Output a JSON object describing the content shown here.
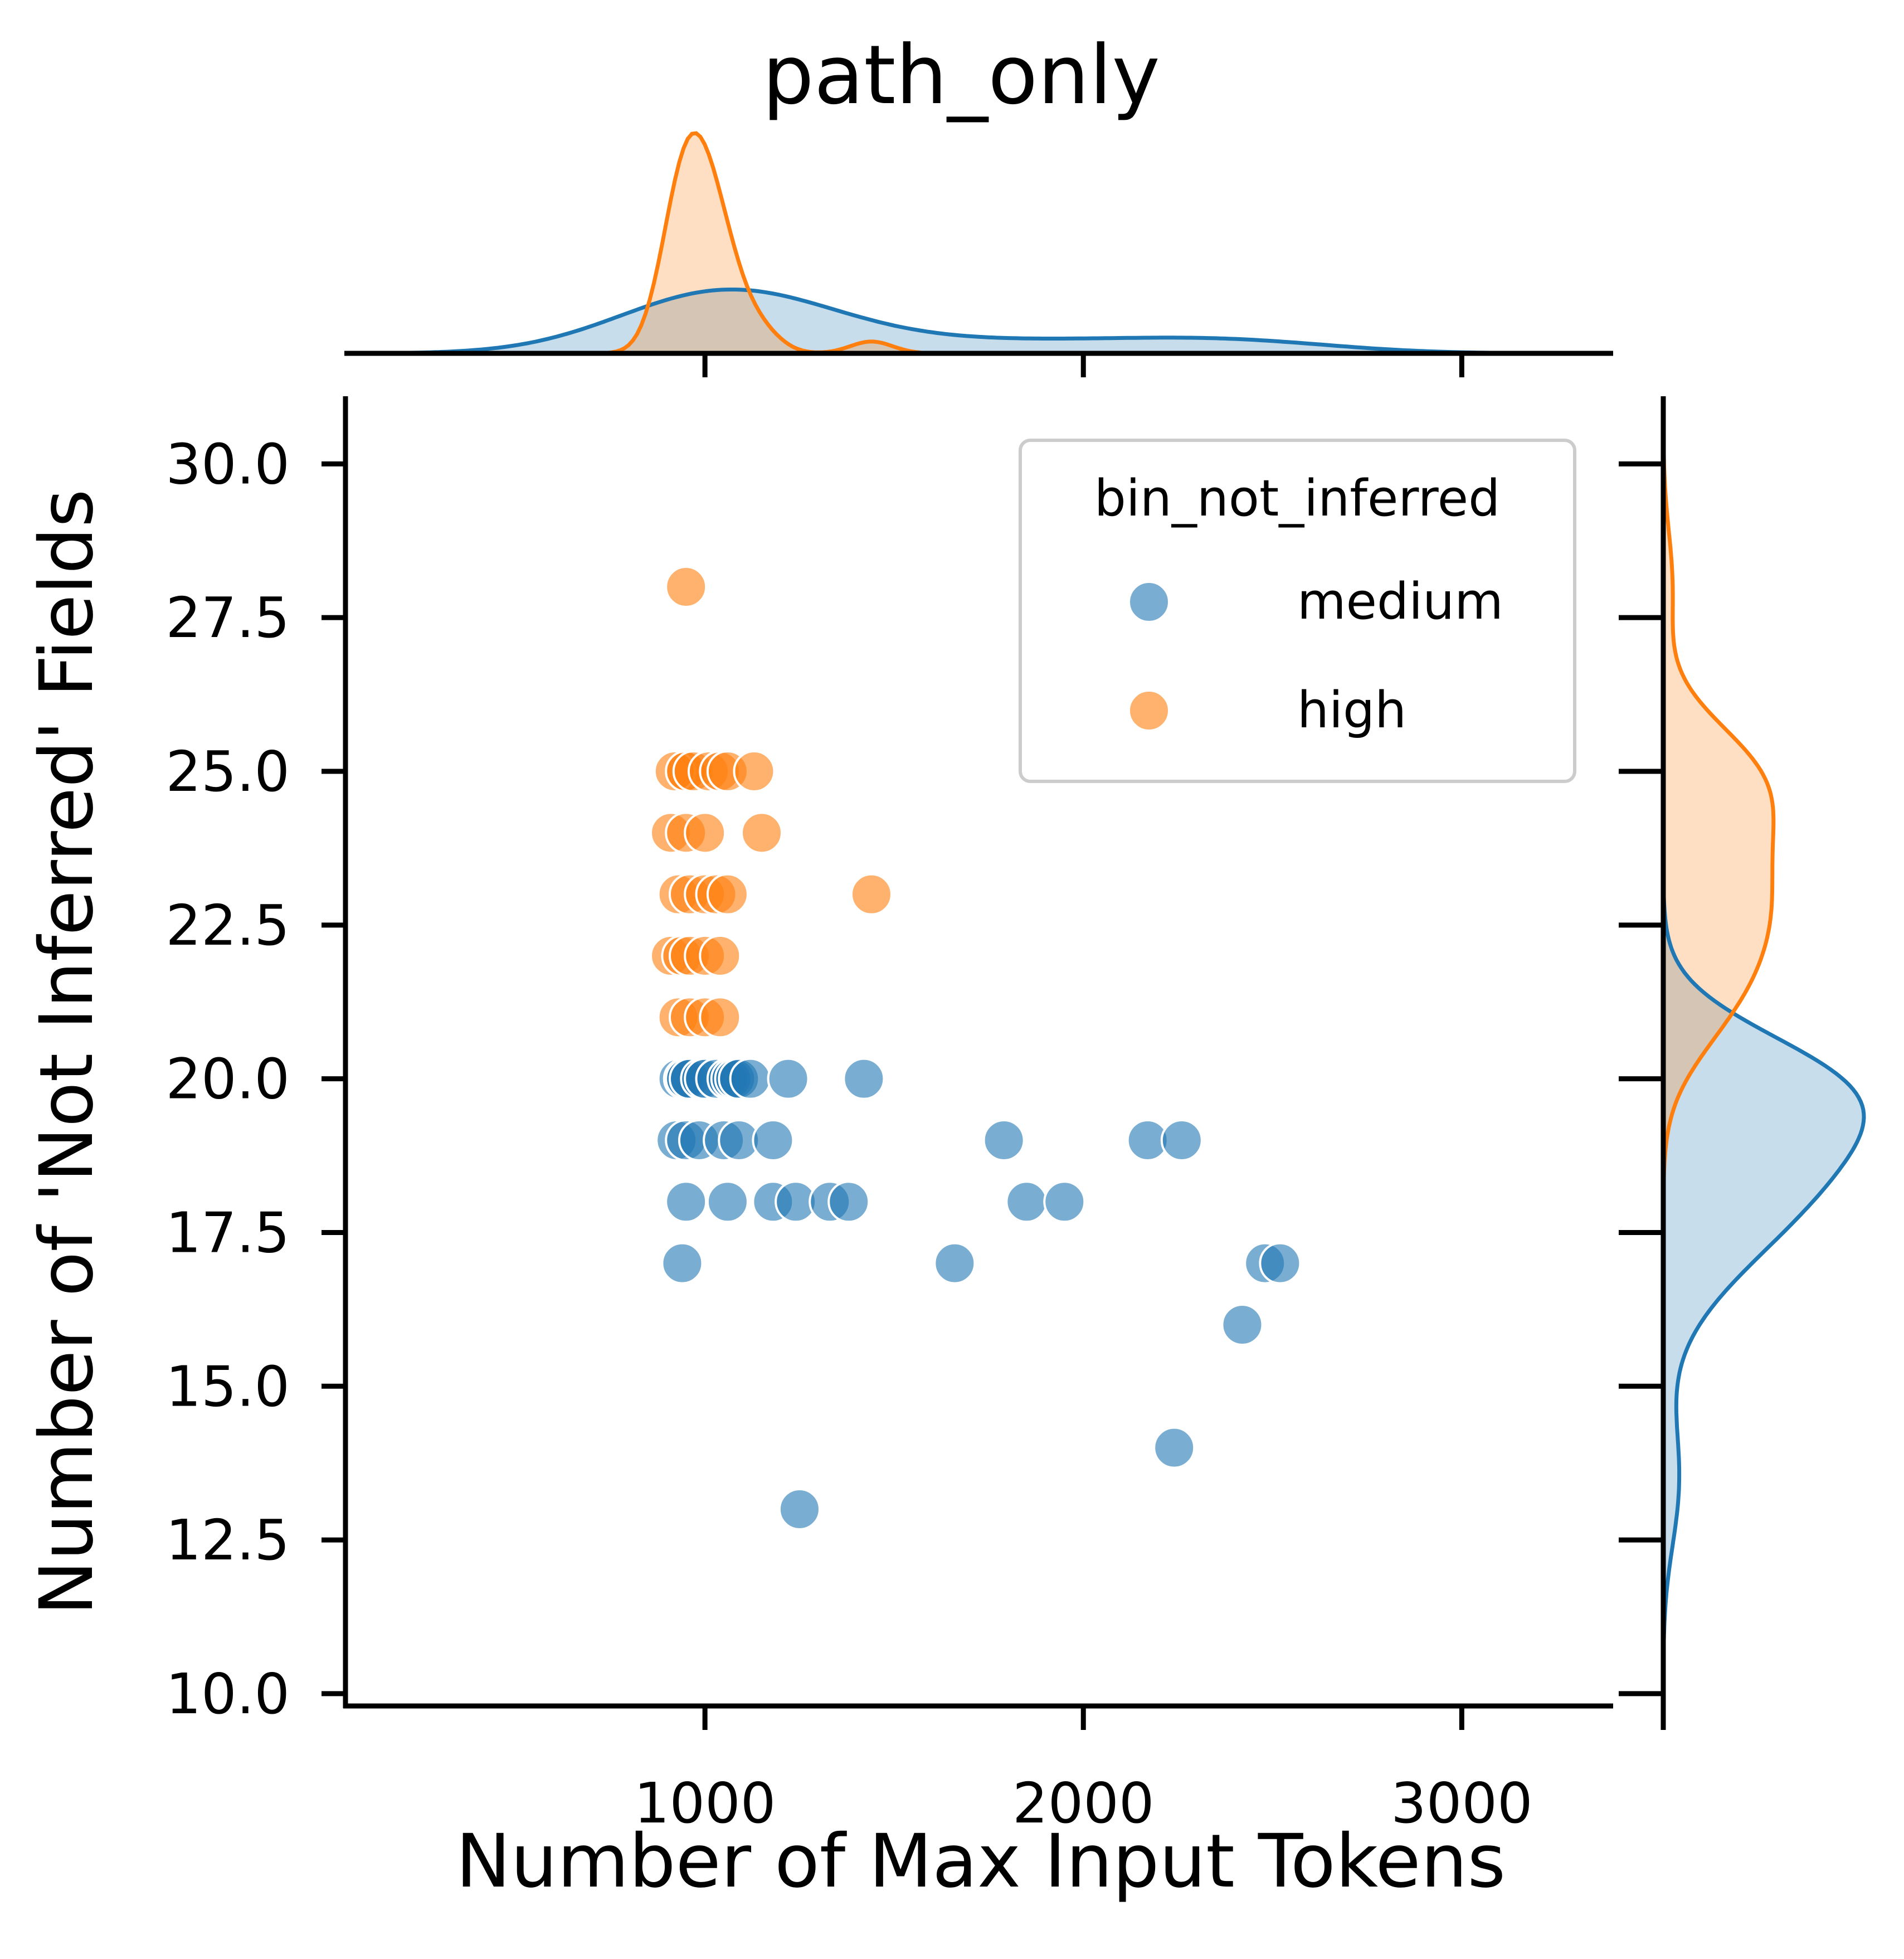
{
  "chart_data": {
    "type": "scatter",
    "title": "path_only",
    "xlabel": "Number of Max Input Tokens",
    "ylabel": "Number of 'Not Inferred' Fields",
    "xlim": [
      50,
      3400
    ],
    "ylim": [
      9.8,
      31.1
    ],
    "xticks": [
      "1000",
      "2000",
      "3000"
    ],
    "xtick_values": [
      1000,
      2000,
      3000
    ],
    "yticks": [
      "10.0",
      "12.5",
      "15.0",
      "17.5",
      "20.0",
      "22.5",
      "25.0",
      "27.5",
      "30.0"
    ],
    "ytick_values": [
      10,
      12.5,
      15,
      17.5,
      20,
      22.5,
      25,
      27.5,
      30
    ],
    "grid": false,
    "legend": {
      "title": "bin_not_inferred",
      "placement": "top-right",
      "entries": [
        "medium",
        "high"
      ]
    },
    "marginals": {
      "top": "kde of x per series",
      "right": "kde of y per series"
    },
    "series": [
      {
        "name": "medium",
        "color": "#1f77b4",
        "x": [
          930,
          945,
          950,
          960,
          990,
          1000,
          1030,
          1060,
          1070,
          1080,
          1090,
          1120,
          1220,
          1420,
          925,
          950,
          985,
          1050,
          1090,
          1180,
          1790,
          2170,
          2260,
          950,
          1060,
          1180,
          1240,
          1330,
          1380,
          1850,
          1950,
          940,
          1660,
          2480,
          2520,
          2420,
          2240,
          1250
        ],
        "y": [
          20,
          20,
          20,
          20,
          20,
          20,
          20,
          20,
          20,
          20,
          20,
          20,
          20,
          20,
          19,
          19,
          19,
          19,
          19,
          19,
          19,
          19,
          19,
          18,
          18,
          18,
          18,
          18,
          18,
          18,
          18,
          17,
          17,
          17,
          17,
          16,
          14,
          13
        ]
      },
      {
        "name": "high",
        "color": "#ff7f0e",
        "x": [
          950,
          920,
          950,
          970,
          1010,
          1040,
          1060,
          1130,
          910,
          950,
          1000,
          1150,
          930,
          960,
          1000,
          1030,
          1060,
          1440,
          910,
          940,
          960,
          1000,
          1040,
          930,
          960,
          1000,
          1040,
          950
        ],
        "y": [
          25,
          25,
          25,
          25,
          25,
          25,
          25,
          25,
          24,
          24,
          24,
          24,
          23,
          23,
          23,
          23,
          23,
          23,
          22,
          22,
          22,
          22,
          22,
          21,
          21,
          21,
          21,
          28
        ]
      }
    ]
  }
}
